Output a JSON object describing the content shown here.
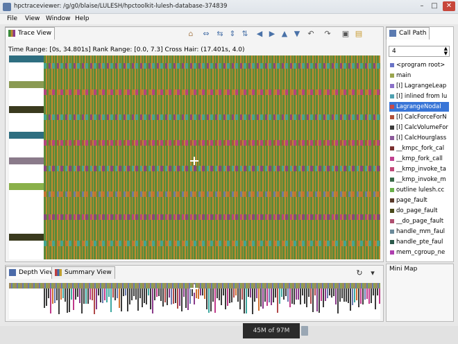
{
  "window": {
    "title": "hpctraceviewer: /g/g0/blaise/LULESH/hpctoolkit-lulesh-database-374839",
    "controls": [
      "–",
      "□",
      "✕"
    ]
  },
  "menu": [
    "File",
    "View",
    "Window",
    "Help"
  ],
  "trace_view": {
    "tab_label": "Trace View",
    "info": {
      "time_range": "Time Range: [0s, 34.801s]",
      "rank_range": "Rank Range: [0.0, 7.3]",
      "cross_hair": "Cross Hair: (17.401s, 4.0)"
    },
    "toolbar_icons": [
      "home-icon",
      "expand-horizontal-icon",
      "shrink-horizontal-icon",
      "expand-vertical-icon",
      "shrink-vertical-icon",
      "arrow-left-icon",
      "arrow-right-icon",
      "arrow-up-icon",
      "arrow-down-icon",
      "undo-icon",
      "redo-icon",
      "save-icon",
      "open-icon"
    ]
  },
  "depth_view": {
    "tab_label": "Depth View",
    "summary_tab_label": "Summary View"
  },
  "call_path": {
    "tab_label": "Call Path",
    "depth_value": "4",
    "items": [
      {
        "label": "<program root>",
        "color": "#6a74c6"
      },
      {
        "label": "main",
        "color": "#9aa54e"
      },
      {
        "label": "[I] LagrangeLeap",
        "color": "#8a70c8"
      },
      {
        "label": "[I] inlined from lu",
        "color": "#4ea0b0"
      },
      {
        "label": "LagrangeNodal",
        "color": "#c44a4a",
        "selected": true
      },
      {
        "label": "[I] CalcForceForN",
        "color": "#b0503a"
      },
      {
        "label": "[I] CalcVolumeFor",
        "color": "#3a3a3a"
      },
      {
        "label": "[I] CalcHourglass",
        "color": "#8c5a9a"
      },
      {
        "label": "__kmpc_fork_cal",
        "color": "#7a3030"
      },
      {
        "label": "__kmp_fork_call",
        "color": "#c04090"
      },
      {
        "label": "__kmp_invoke_ta",
        "color": "#c04878"
      },
      {
        "label": "__kmp_invoke_m",
        "color": "#3a6a4a"
      },
      {
        "label": "outline lulesh.cc",
        "color": "#6ab04a"
      },
      {
        "label": "page_fault",
        "color": "#5a3a2a"
      },
      {
        "label": "do_page_fault",
        "color": "#4a4a1a"
      },
      {
        "label": "__do_page_fault",
        "color": "#b05070"
      },
      {
        "label": "handle_mm_faul",
        "color": "#6a8a9a"
      },
      {
        "label": "handle_pte_faul",
        "color": "#2a5a4a"
      },
      {
        "label": "mem_cgroup_ne",
        "color": "#b040b0"
      }
    ]
  },
  "mini_map": {
    "label": "Mini Map"
  },
  "status": {
    "memory": "45M of 97M"
  },
  "trace_colors": {
    "base": "#5d8a38",
    "stripe": "#c08a30",
    "accent": [
      "#c0398a",
      "#d07030",
      "#3ea8a0",
      "#8a3a8a",
      "#6a7ab0",
      "#b04848"
    ]
  },
  "rank_colors": [
    "#2e6e80",
    "#8a9a52",
    "#3a3a1e",
    "#2e6e80",
    "#8a7a8a",
    "#8ab04a",
    "#3a3a1e"
  ]
}
